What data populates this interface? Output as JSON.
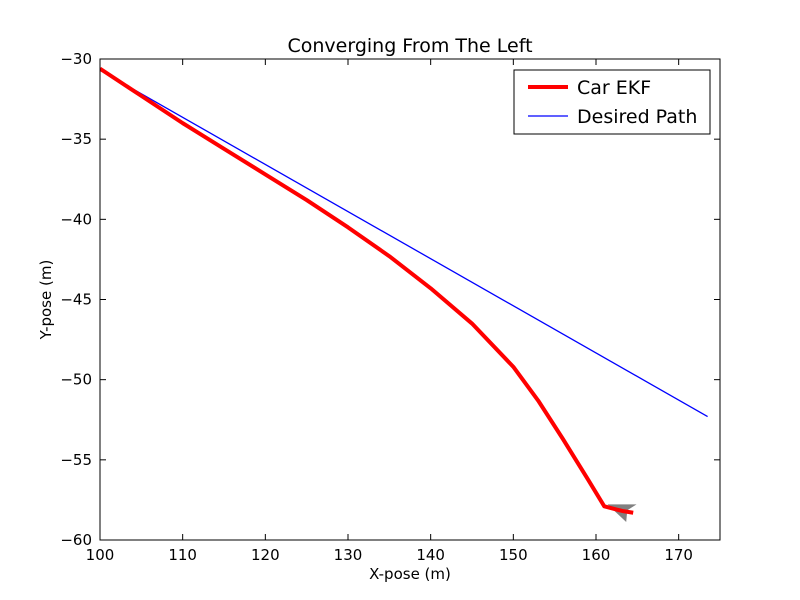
{
  "chart_data": {
    "type": "line",
    "title": "Converging From The Left",
    "xlabel": "X-pose (m)",
    "ylabel": "Y-pose (m)",
    "xlim": [
      100,
      175
    ],
    "ylim": [
      -60,
      -30
    ],
    "x_ticks": [
      100,
      110,
      120,
      130,
      140,
      150,
      160,
      170
    ],
    "y_ticks": [
      -30,
      -35,
      -40,
      -45,
      -50,
      -55,
      -60
    ],
    "y_tick_labels": [
      "−30",
      "−35",
      "−40",
      "−45",
      "−50",
      "−55",
      "−60"
    ],
    "grid": false,
    "legend_position": "top-right",
    "series": [
      {
        "name": "Car EKF",
        "color": "#ff0000",
        "style": "thick-solid",
        "x": [
          100,
          105,
          110,
          115,
          120,
          125,
          130,
          135,
          140,
          145,
          150,
          153,
          156,
          159,
          161,
          162.5,
          163.3,
          164.5
        ],
        "y": [
          -30.6,
          -32.3,
          -34.0,
          -35.6,
          -37.2,
          -38.8,
          -40.5,
          -42.3,
          -44.3,
          -46.5,
          -49.2,
          -51.3,
          -53.7,
          -56.2,
          -57.9,
          -58.1,
          -58.2,
          -58.3
        ]
      },
      {
        "name": "Desired Path",
        "color": "#0000ff",
        "style": "thin-solid",
        "x": [
          100,
          173.5
        ],
        "y": [
          -30.7,
          -52.3
        ]
      }
    ],
    "annotations": [
      {
        "type": "car-marker",
        "shape": "triangle",
        "color": "#808080",
        "x": 163,
        "y": -58
      }
    ]
  }
}
